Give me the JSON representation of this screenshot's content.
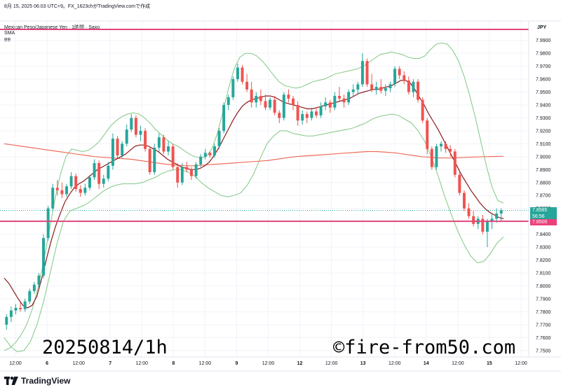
{
  "header": {
    "title": "8月 15, 2025 06:03 UTC+9。FX_1623chがTradingView.comで作成",
    "symbol": "Mexican Peso/Japanese Yen · 1時間 · Saxo",
    "sma": "SMA",
    "bb": "BB"
  },
  "axis": {
    "currency": "JPY",
    "price_ticks": [
      "7.9900",
      "7.9800",
      "7.9700",
      "7.9600",
      "7.9500",
      "7.9400",
      "7.9300",
      "7.9200",
      "7.9100",
      "7.9000",
      "7.8900",
      "7.8800",
      "7.8700",
      "7.8600",
      "7.8500",
      "7.8400",
      "7.8300",
      "7.8200",
      "7.8100",
      "7.8000",
      "7.7900",
      "7.7800",
      "7.7700",
      "7.7600",
      "7.7500"
    ],
    "time_ticks": [
      "12:00",
      "6",
      "12:00",
      "7",
      "12:00",
      "8",
      "12:00",
      "9",
      "12:00",
      "12",
      "12:00",
      "13",
      "12:00",
      "14",
      "12:00",
      "15",
      "12:00"
    ]
  },
  "badges": {
    "current_price": "7.8585",
    "countdown": "56:56",
    "level_price": "7.8500"
  },
  "watermark": {
    "date": "20250814/1h",
    "site": "©fire-from50.com"
  },
  "brand": {
    "logo_text": "TradingView"
  },
  "colors": {
    "up": "#26a69a",
    "down": "#ef5350",
    "sma_short": "#8b1a1a",
    "sma_long": "#ef6c5a",
    "bb": "#81c784",
    "level_line": "#e0457b",
    "current_line": "#26a69a"
  },
  "chart_data": {
    "type": "candlestick",
    "symbol": "Mexican Peso/Japanese Yen",
    "interval": "1時間",
    "ylim": [
      7.745,
      8.005
    ],
    "horizontal_levels": [
      7.9985,
      7.85
    ],
    "current_price": 7.8585,
    "candles": [
      [
        7.77,
        7.778,
        7.766,
        7.776
      ],
      [
        7.776,
        7.784,
        7.772,
        7.781
      ],
      [
        7.781,
        7.786,
        7.778,
        7.783
      ],
      [
        7.783,
        7.787,
        7.78,
        7.782
      ],
      [
        7.782,
        7.79,
        7.78,
        7.788
      ],
      [
        7.788,
        7.798,
        7.786,
        7.796
      ],
      [
        7.796,
        7.803,
        7.794,
        7.801
      ],
      [
        7.801,
        7.81,
        7.799,
        7.808
      ],
      [
        7.808,
        7.84,
        7.806,
        7.837
      ],
      [
        7.837,
        7.862,
        7.835,
        7.86
      ],
      [
        7.86,
        7.879,
        7.858,
        7.876
      ],
      [
        7.876,
        7.882,
        7.87,
        7.874
      ],
      [
        7.874,
        7.88,
        7.868,
        7.871
      ],
      [
        7.871,
        7.879,
        7.869,
        7.877
      ],
      [
        7.877,
        7.888,
        7.875,
        7.885
      ],
      [
        7.885,
        7.887,
        7.873,
        7.875
      ],
      [
        7.875,
        7.878,
        7.869,
        7.872
      ],
      [
        7.872,
        7.879,
        7.87,
        7.876
      ],
      [
        7.876,
        7.886,
        7.874,
        7.884
      ],
      [
        7.884,
        7.898,
        7.882,
        7.895
      ],
      [
        7.895,
        7.897,
        7.875,
        7.879
      ],
      [
        7.879,
        7.886,
        7.876,
        7.883
      ],
      [
        7.883,
        7.896,
        7.881,
        7.893
      ],
      [
        7.893,
        7.918,
        7.89,
        7.914
      ],
      [
        7.914,
        7.916,
        7.899,
        7.901
      ],
      [
        7.901,
        7.912,
        7.899,
        7.91
      ],
      [
        7.91,
        7.925,
        7.908,
        7.921
      ],
      [
        7.921,
        7.933,
        7.919,
        7.93
      ],
      [
        7.93,
        7.932,
        7.915,
        7.917
      ],
      [
        7.917,
        7.924,
        7.912,
        7.92
      ],
      [
        7.92,
        7.922,
        7.904,
        7.906
      ],
      [
        7.906,
        7.908,
        7.886,
        7.888
      ],
      [
        7.888,
        7.91,
        7.886,
        7.907
      ],
      [
        7.907,
        7.918,
        7.904,
        7.915
      ],
      [
        7.915,
        7.917,
        7.902,
        7.904
      ],
      [
        7.904,
        7.912,
        7.901,
        7.908
      ],
      [
        7.908,
        7.91,
        7.89,
        7.892
      ],
      [
        7.892,
        7.895,
        7.876,
        7.88
      ],
      [
        7.88,
        7.895,
        7.878,
        7.892
      ],
      [
        7.892,
        7.896,
        7.888,
        7.89
      ],
      [
        7.89,
        7.892,
        7.882,
        7.885
      ],
      [
        7.885,
        7.896,
        7.883,
        7.894
      ],
      [
        7.894,
        7.902,
        7.892,
        7.9
      ],
      [
        7.9,
        7.906,
        7.898,
        7.903
      ],
      [
        7.903,
        7.904,
        7.899,
        7.901
      ],
      [
        7.901,
        7.91,
        7.899,
        7.908
      ],
      [
        7.908,
        7.922,
        7.906,
        7.92
      ],
      [
        7.92,
        7.942,
        7.918,
        7.94
      ],
      [
        7.94,
        7.948,
        7.936,
        7.946
      ],
      [
        7.946,
        7.962,
        7.944,
        7.96
      ],
      [
        7.96,
        7.972,
        7.958,
        7.969
      ],
      [
        7.969,
        7.971,
        7.956,
        7.958
      ],
      [
        7.958,
        7.964,
        7.95,
        7.952
      ],
      [
        7.952,
        7.958,
        7.938,
        7.942
      ],
      [
        7.942,
        7.95,
        7.938,
        7.947
      ],
      [
        7.947,
        7.952,
        7.94,
        7.943
      ],
      [
        7.943,
        7.948,
        7.936,
        7.938
      ],
      [
        7.938,
        7.946,
        7.936,
        7.944
      ],
      [
        7.944,
        7.947,
        7.932,
        7.934
      ],
      [
        7.934,
        7.936,
        7.926,
        7.93
      ],
      [
        7.93,
        7.95,
        7.928,
        7.948
      ],
      [
        7.948,
        7.952,
        7.942,
        7.945
      ],
      [
        7.945,
        7.947,
        7.936,
        7.94
      ],
      [
        7.94,
        7.943,
        7.924,
        7.928
      ],
      [
        7.928,
        7.936,
        7.925,
        7.933
      ],
      [
        7.933,
        7.935,
        7.926,
        7.93
      ],
      [
        7.93,
        7.938,
        7.928,
        7.935
      ],
      [
        7.935,
        7.938,
        7.93,
        7.932
      ],
      [
        7.932,
        7.942,
        7.93,
        7.939
      ],
      [
        7.939,
        7.946,
        7.936,
        7.942
      ],
      [
        7.942,
        7.944,
        7.934,
        7.938
      ],
      [
        7.938,
        7.95,
        7.936,
        7.947
      ],
      [
        7.947,
        7.954,
        7.943,
        7.945
      ],
      [
        7.945,
        7.948,
        7.938,
        7.942
      ],
      [
        7.942,
        7.952,
        7.94,
        7.95
      ],
      [
        7.95,
        7.956,
        7.946,
        7.952
      ],
      [
        7.952,
        7.958,
        7.948,
        7.956
      ],
      [
        7.956,
        7.98,
        7.954,
        7.974
      ],
      [
        7.974,
        7.976,
        7.954,
        7.956
      ],
      [
        7.956,
        7.964,
        7.95,
        7.952
      ],
      [
        7.952,
        7.958,
        7.948,
        7.954
      ],
      [
        7.954,
        7.96,
        7.949,
        7.951
      ],
      [
        7.951,
        7.956,
        7.947,
        7.953
      ],
      [
        7.953,
        7.958,
        7.95,
        7.956
      ],
      [
        7.956,
        7.97,
        7.954,
        7.968
      ],
      [
        7.968,
        7.97,
        7.96,
        7.963
      ],
      [
        7.963,
        7.966,
        7.956,
        7.959
      ],
      [
        7.959,
        7.962,
        7.948,
        7.95
      ],
      [
        7.95,
        7.96,
        7.946,
        7.958
      ],
      [
        7.958,
        7.96,
        7.942,
        7.944
      ],
      [
        7.944,
        7.946,
        7.926,
        7.928
      ],
      [
        7.928,
        7.93,
        7.902,
        7.906
      ],
      [
        7.906,
        7.908,
        7.89,
        7.892
      ],
      [
        7.892,
        7.91,
        7.89,
        7.908
      ],
      [
        7.908,
        7.912,
        7.904,
        7.91
      ],
      [
        7.91,
        7.912,
        7.903,
        7.906
      ],
      [
        7.906,
        7.909,
        7.9,
        7.904
      ],
      [
        7.904,
        7.906,
        7.884,
        7.886
      ],
      [
        7.886,
        7.888,
        7.87,
        7.872
      ],
      [
        7.872,
        7.874,
        7.858,
        7.86
      ],
      [
        7.86,
        7.864,
        7.852,
        7.854
      ],
      [
        7.854,
        7.858,
        7.846,
        7.848
      ],
      [
        7.848,
        7.854,
        7.844,
        7.852
      ],
      [
        7.852,
        7.855,
        7.84,
        7.842
      ],
      [
        7.842,
        7.852,
        7.83,
        7.85
      ],
      [
        7.85,
        7.856,
        7.844,
        7.852
      ],
      [
        7.852,
        7.86,
        7.849,
        7.856
      ],
      [
        7.856,
        7.86,
        7.85,
        7.8585
      ]
    ],
    "sma_short": [
      7.806,
      7.802,
      7.796,
      7.79,
      7.785,
      7.783,
      7.785,
      7.792,
      7.805,
      7.82,
      7.834,
      7.846,
      7.856,
      7.865,
      7.871,
      7.876,
      7.879,
      7.881,
      7.884,
      7.887,
      7.89,
      7.892,
      7.894,
      7.896,
      7.898,
      7.9,
      7.902,
      7.905,
      7.908,
      7.909,
      7.909,
      7.908,
      7.906,
      7.904,
      7.901,
      7.898,
      7.896,
      7.894,
      7.892,
      7.891,
      7.89,
      7.89,
      7.891,
      7.893,
      7.896,
      7.901,
      7.907,
      7.914,
      7.921,
      7.928,
      7.934,
      7.939,
      7.942,
      7.944,
      7.945,
      7.946,
      7.947,
      7.947,
      7.946,
      7.944,
      7.942,
      7.941,
      7.94,
      7.939,
      7.938,
      7.937,
      7.937,
      7.938,
      7.939,
      7.94,
      7.941,
      7.942,
      7.943,
      7.944,
      7.945,
      7.947,
      7.949,
      7.95,
      7.951,
      7.952,
      7.952,
      7.953,
      7.954,
      7.955,
      7.957,
      7.959,
      7.959,
      7.957,
      7.952,
      7.946,
      7.94,
      7.933,
      7.927,
      7.921,
      7.914,
      7.907,
      7.9,
      7.893,
      7.886,
      7.88,
      7.874,
      7.869,
      7.864,
      7.86,
      7.857,
      7.855,
      7.853,
      7.852
    ],
    "sma_long": [
      7.91,
      7.909,
      7.908,
      7.907,
      7.906,
      7.905,
      7.904,
      7.903,
      7.902,
      7.901,
      7.9,
      7.8995,
      7.899,
      7.8985,
      7.898,
      7.897,
      7.896,
      7.895,
      7.894,
      7.8935,
      7.893,
      7.893,
      7.8935,
      7.894,
      7.8945,
      7.895,
      7.8955,
      7.896,
      7.8965,
      7.897,
      7.898,
      7.899,
      7.9,
      7.9005,
      7.901,
      7.9015,
      7.902,
      7.9025,
      7.903,
      7.9035,
      7.904,
      7.904,
      7.9035,
      7.903,
      7.902,
      7.901,
      7.9,
      7.8995,
      7.899,
      7.899,
      7.8992,
      7.8995,
      7.8998,
      7.9,
      7.9002,
      7.9003
    ],
    "bb_upper": [
      7.75,
      7.752,
      7.756,
      7.762,
      7.77,
      7.782,
      7.798,
      7.818,
      7.842,
      7.866,
      7.886,
      7.9,
      7.906,
      7.905,
      7.904,
      7.905,
      7.908,
      7.912,
      7.918,
      7.924,
      7.928,
      7.931,
      7.933,
      7.934,
      7.933,
      7.93,
      7.926,
      7.921,
      7.917,
      7.913,
      7.91,
      7.908,
      7.905,
      7.902,
      7.9,
      7.899,
      7.9,
      7.906,
      7.918,
      7.935,
      7.953,
      7.968,
      7.977,
      7.98,
      7.98,
      7.978,
      7.974,
      7.969,
      7.963,
      7.958,
      7.955,
      7.954,
      7.953,
      7.954,
      7.956,
      7.958,
      7.959,
      7.96,
      7.962,
      7.964,
      7.965,
      7.966,
      7.967,
      7.968,
      7.97,
      7.973,
      7.976,
      7.979,
      7.98,
      7.981,
      7.98,
      7.979,
      7.977,
      7.976,
      7.976,
      7.978,
      7.983,
      7.987,
      7.988,
      7.987,
      7.982,
      7.974,
      7.962,
      7.947,
      7.93,
      7.911,
      7.892,
      7.876,
      7.866,
      7.864
    ],
    "bb_lower": [
      7.76,
      7.753,
      7.749,
      7.75,
      7.757,
      7.77,
      7.788,
      7.81,
      7.832,
      7.85,
      7.858,
      7.86,
      7.862,
      7.865,
      7.869,
      7.873,
      7.876,
      7.878,
      7.879,
      7.879,
      7.879,
      7.88,
      7.882,
      7.884,
      7.887,
      7.889,
      7.89,
      7.89,
      7.888,
      7.885,
      7.88,
      7.876,
      7.873,
      7.87,
      7.869,
      7.87,
      7.872,
      7.878,
      7.887,
      7.899,
      7.91,
      7.916,
      7.92,
      7.92,
      7.918,
      7.917,
      7.916,
      7.916,
      7.917,
      7.918,
      7.919,
      7.92,
      7.921,
      7.922,
      7.924,
      7.926,
      7.929,
      7.931,
      7.932,
      7.933,
      7.932,
      7.929,
      7.926,
      7.92,
      7.912,
      7.9,
      7.886,
      7.87,
      7.856,
      7.843,
      7.832,
      7.823,
      7.818,
      7.819,
      7.825,
      7.833,
      7.838
    ]
  }
}
